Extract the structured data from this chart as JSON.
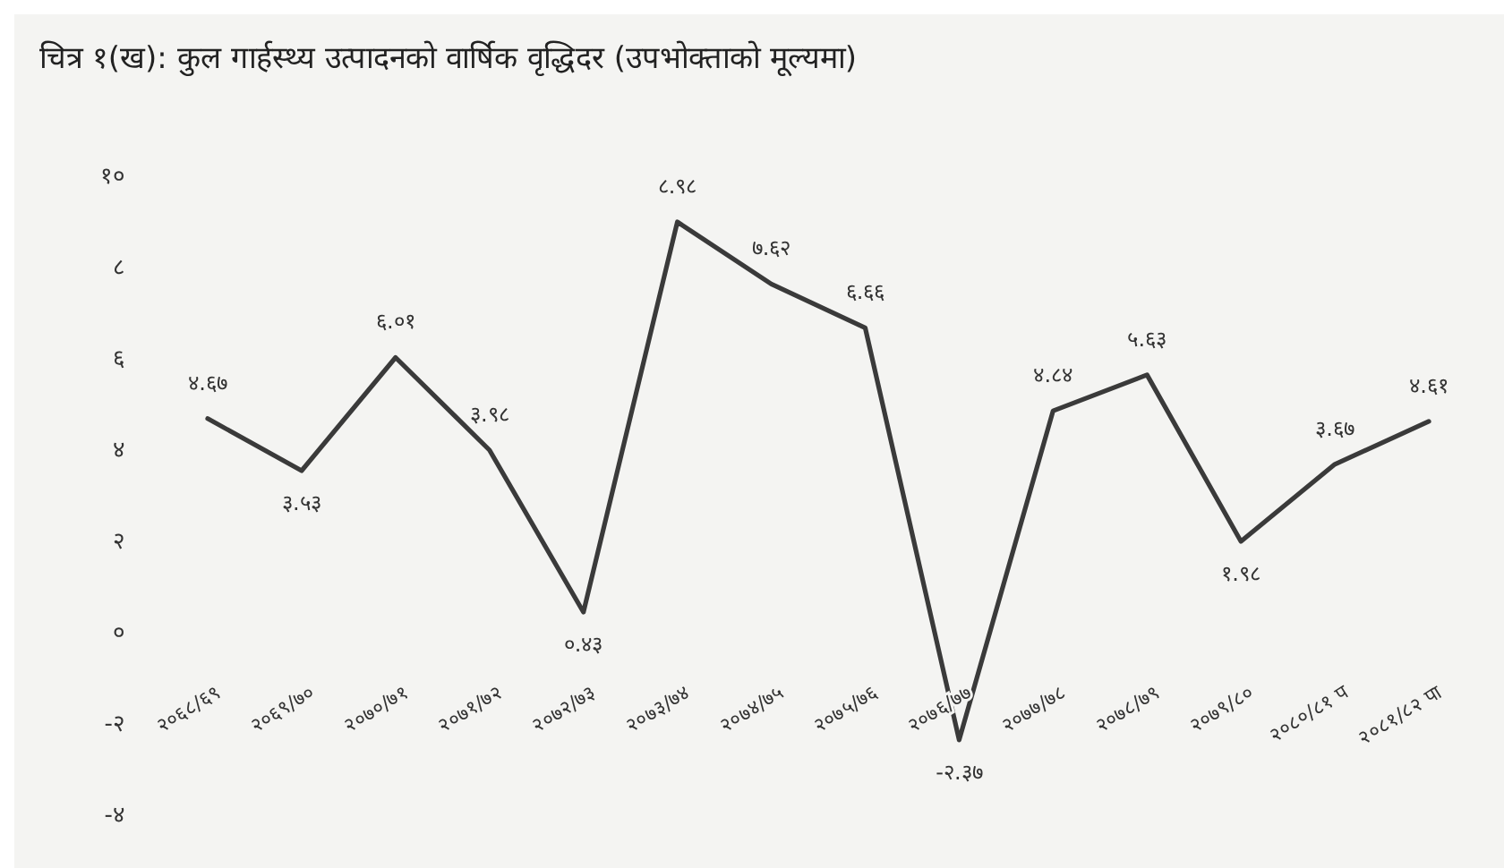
{
  "chart_data": {
    "type": "line",
    "title": "चित्र १(ख): कुल गार्हस्थ्य उत्पादनको वार्षिक वृद्धिदर (उपभोक्ताको मूल्यमा)",
    "categories": [
      "२०६८/६९",
      "२०६९/७०",
      "२०७०/७१",
      "२०७१/७२",
      "२०७२/७३",
      "२०७३/७४",
      "२०७४/७५",
      "२०७५/७६",
      "२०७६/७७",
      "२०७७/७८",
      "२०७८/७९",
      "२०७९/८०",
      "२०८०/८१ प",
      "२०८१/८२ पा"
    ],
    "series": [
      {
        "color": "#3a3a3a",
        "values": [
          4.67,
          3.53,
          6.01,
          3.98,
          0.43,
          8.98,
          7.62,
          6.66,
          -2.37,
          4.84,
          5.63,
          1.98,
          3.67,
          4.61
        ],
        "value_labels": [
          "४.६७",
          "३.५३",
          "६.०१",
          "३.९८",
          "०.४३",
          "८.९८",
          "७.६२",
          "६.६६",
          "-२.३७",
          "४.८४",
          "५.६३",
          "१.९८",
          "३.६७",
          "४.६१"
        ]
      }
    ],
    "ylim": [
      -4,
      10
    ],
    "yticks": [
      {
        "value": -4,
        "label": "-४"
      },
      {
        "value": -2,
        "label": "-२"
      },
      {
        "value": 0,
        "label": "०"
      },
      {
        "value": 2,
        "label": "२"
      },
      {
        "value": 4,
        "label": "४"
      },
      {
        "value": 6,
        "label": "६"
      },
      {
        "value": 8,
        "label": "८"
      },
      {
        "value": 10,
        "label": "१०"
      }
    ],
    "grid": false,
    "marker": "none",
    "line_style": "solid"
  }
}
